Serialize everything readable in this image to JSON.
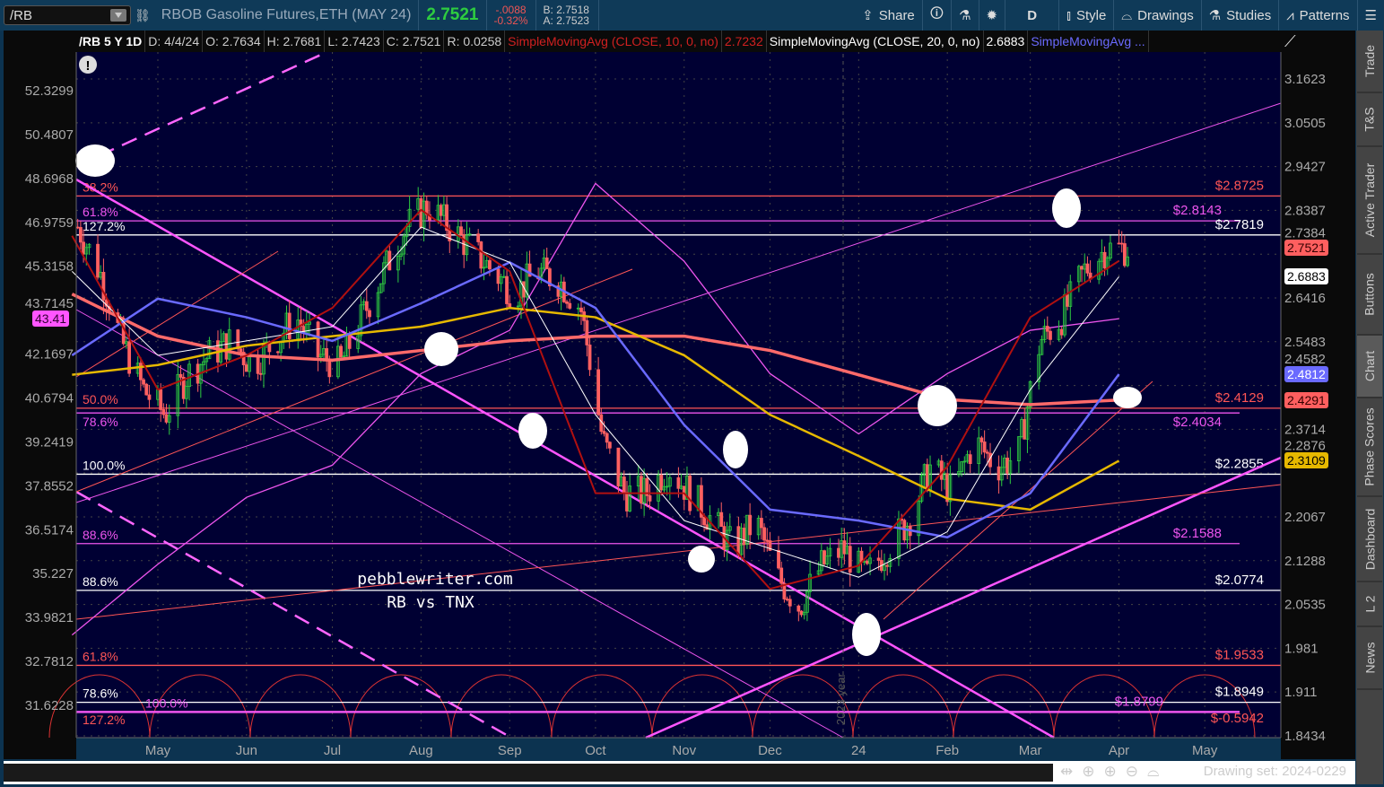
{
  "toolbar": {
    "symbol": "/RB",
    "description": "RBOB Gasoline Futures,ETH (MAY 24)",
    "last": "2.7521",
    "change": "-.0088",
    "change_pct": "-0.32%",
    "bid": "B: 2.7518",
    "ask": "A: 2.7523",
    "share": "Share",
    "period": "D",
    "style": "Style",
    "drawings": "Drawings",
    "studies": "Studies",
    "patterns": "Patterns"
  },
  "studies_bar": {
    "symbol": "/RB 5 Y 1D",
    "date": "D: 4/4/24",
    "open": "O: 2.7634",
    "high": "H: 2.7681",
    "low": "L: 2.7423",
    "close": "C: 2.7521",
    "range": "R: 0.0258",
    "sma10": "SimpleMovingAvg (CLOSE, 10, 0, no)",
    "sma10_val": "2.7232",
    "sma20": "SimpleMovingAvg (CLOSE, 20, 0, no)",
    "sma20_val": "2.6883",
    "sma3": "SimpleMovingAvg ..."
  },
  "sidebar": [
    "Trade",
    "T&S",
    "Active Trader",
    "Buttons",
    "Chart",
    "Phase Scores",
    "Dashboard",
    "L 2",
    "News"
  ],
  "sidebar_active": "Chart",
  "bottom": {
    "drawing_set": "Drawing set: 2024-0229"
  },
  "watermark": {
    "line1": "pebblewriter.com",
    "line2": "RB vs TNX",
    "year_marker": "2023 year"
  },
  "colors": {
    "plot_bg": "#000033",
    "candle_up": "#2ecc40",
    "candle_down": "#ff6060",
    "sma10": "#b01010",
    "sma20": "#ffffff",
    "sma_blue": "#6a6aff",
    "sma_yellow": "#e6b800",
    "sma_salmon": "#ff6a6a",
    "tnx": "#ee55ee"
  },
  "chart_data": {
    "type": "candlestick",
    "x_ticks": [
      "May",
      "Jun",
      "Jul",
      "Aug",
      "Sep",
      "Oct",
      "Nov",
      "Dec",
      "24",
      "Feb",
      "Mar",
      "Apr",
      "May"
    ],
    "right_axis_ticks": [
      "3.1623",
      "3.0505",
      "2.9427",
      "2.8387",
      "2.7384",
      "2.6416",
      "2.5483",
      "2.4582",
      "2.3714",
      "2.2876",
      "2.2067",
      "2.1288",
      "2.0535",
      "1.981",
      "1.911",
      "1.8434"
    ],
    "left_axis_ticks": [
      "52.3299",
      "50.4807",
      "48.6968",
      "46.9759",
      "45.3158",
      "43.7145",
      "42.1697",
      "40.6794",
      "39.2419",
      "37.8552",
      "36.5174",
      "35.227",
      "33.9821",
      "32.7812",
      "31.6228"
    ],
    "right_scale": "log",
    "right_range": [
      1.8434,
      3.1623
    ],
    "left_range": [
      31.6228,
      52.3299
    ],
    "rb_weekly_close": [
      2.8,
      2.7,
      2.55,
      2.45,
      2.4,
      2.48,
      2.52,
      2.55,
      2.5,
      2.55,
      2.6,
      2.52,
      2.5,
      2.6,
      2.7,
      2.8,
      2.85,
      2.8,
      2.75,
      2.7,
      2.65,
      2.7,
      2.68,
      2.62,
      2.35,
      2.25,
      2.25,
      2.3,
      2.25,
      2.2,
      2.15,
      2.2,
      2.1,
      2.05,
      2.12,
      2.15,
      2.1,
      2.15,
      2.2,
      2.3,
      2.25,
      2.35,
      2.3,
      2.32,
      2.55,
      2.6,
      2.7,
      2.75,
      2.7521
    ],
    "months": [
      "2023-04",
      "2023-05",
      "2023-06",
      "2023-07",
      "2023-08",
      "2023-09",
      "2023-10",
      "2023-11",
      "2023-12",
      "2024-01",
      "2024-02",
      "2024-03",
      "2024-04"
    ],
    "sma10": [
      2.78,
      2.45,
      2.52,
      2.62,
      2.84,
      2.7,
      2.25,
      2.25,
      2.08,
      2.12,
      2.3,
      2.6,
      2.7232
    ],
    "sma20": [
      2.7,
      2.52,
      2.55,
      2.58,
      2.8,
      2.72,
      2.4,
      2.2,
      2.15,
      2.1,
      2.18,
      2.45,
      2.6883
    ],
    "sma_blue": [
      2.52,
      2.64,
      2.6,
      2.55,
      2.63,
      2.72,
      2.62,
      2.38,
      2.22,
      2.2,
      2.17,
      2.25,
      2.4812
    ],
    "sma_yellow": [
      2.48,
      2.5,
      2.54,
      2.56,
      2.58,
      2.62,
      2.6,
      2.52,
      2.4,
      2.32,
      2.24,
      2.22,
      2.3109
    ],
    "sma_salmon": [
      2.65,
      2.56,
      2.52,
      2.51,
      2.53,
      2.55,
      2.56,
      2.56,
      2.53,
      2.48,
      2.43,
      2.42,
      2.4291
    ],
    "tnx": [
      33.5,
      35.5,
      37.5,
      38.5,
      41.5,
      43.0,
      48.5,
      45.5,
      41.5,
      39.5,
      41.5,
      43.0,
      43.41
    ],
    "levels": [
      {
        "price": 2.8725,
        "label": "$2.8725",
        "pct": "38.2%",
        "color": "#ff5555"
      },
      {
        "price": 2.8143,
        "label": "$2.8143",
        "pct": "61.8%",
        "color": "#ee55ee"
      },
      {
        "price": 2.7819,
        "label": "$2.7819",
        "pct": "127.2%",
        "color": "#ffffff"
      },
      {
        "price": 2.4129,
        "label": "$2.4129",
        "pct": "50.0%",
        "color": "#ff5555"
      },
      {
        "price": 2.4034,
        "label": "$2.4034",
        "pct": "78.6%",
        "color": "#ee55ee"
      },
      {
        "price": 2.2855,
        "label": "$2.2855",
        "pct": "100.0%",
        "color": "#ffffff"
      },
      {
        "price": 2.1588,
        "label": "$2.1588",
        "pct": "88.6%",
        "color": "#ee55ee"
      },
      {
        "price": 2.0774,
        "label": "$2.0774",
        "pct": "88.6%",
        "color": "#ffffff"
      },
      {
        "price": 1.9533,
        "label": "$1.9533",
        "pct": "61.8%",
        "color": "#ff5555"
      },
      {
        "price": 1.8949,
        "label": "$1.8949",
        "pct": "78.6%",
        "color": "#ffffff"
      },
      {
        "price": 1.8799,
        "label": "$1.8799",
        "pct": "100.0%",
        "color": "#ee55ee"
      },
      {
        "price": -0.5942,
        "label": "$-0.5942",
        "pct": "127.2%",
        "color": "#ff5555"
      }
    ],
    "badges": [
      {
        "value": "2.7521",
        "bg": "#ff5f5f",
        "fg": "#300"
      },
      {
        "value": "2.6883",
        "bg": "#ffffff",
        "fg": "#000"
      },
      {
        "value": "2.4812",
        "bg": "#6a6aff",
        "fg": "#fff"
      },
      {
        "value": "2.4291",
        "bg": "#ff5f5f",
        "fg": "#300"
      },
      {
        "value": "2.3109",
        "bg": "#e6b800",
        "fg": "#000"
      }
    ],
    "left_badge": {
      "value": "43.41",
      "bg": "#ff55ff"
    }
  }
}
